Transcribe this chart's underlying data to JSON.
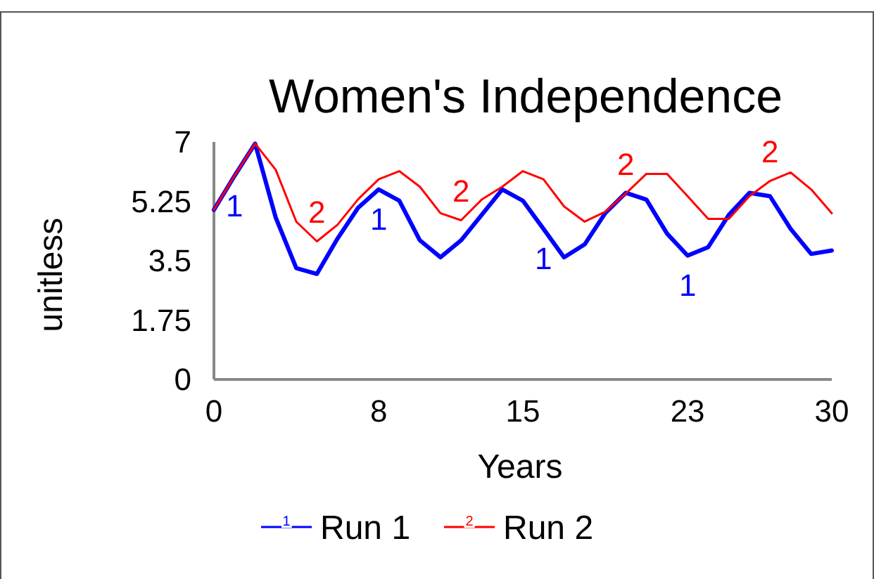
{
  "chart_data": {
    "type": "line",
    "title": "Women's Independence",
    "xlabel": "Years",
    "ylabel": "unitless",
    "x": [
      0,
      1,
      2,
      3,
      4,
      5,
      6,
      7,
      8,
      9,
      10,
      11,
      12,
      13,
      14,
      15,
      16,
      17,
      18,
      19,
      20,
      21,
      22,
      23,
      24,
      25,
      26,
      27,
      28,
      29,
      30
    ],
    "series": [
      {
        "name": "Run 1",
        "color": "#0000ff",
        "values": [
          5.0,
          6.0,
          6.95,
          4.77,
          3.28,
          3.11,
          4.15,
          5.06,
          5.6,
          5.27,
          4.1,
          3.6,
          4.1,
          4.85,
          5.6,
          5.27,
          4.44,
          3.6,
          3.98,
          4.9,
          5.5,
          5.3,
          4.3,
          3.65,
          3.9,
          4.85,
          5.5,
          5.4,
          4.44,
          3.7,
          3.8
        ]
      },
      {
        "name": "Run 2",
        "color": "#ff0000",
        "values": [
          5.0,
          6.0,
          6.95,
          6.18,
          4.65,
          4.07,
          4.56,
          5.31,
          5.9,
          6.14,
          5.68,
          4.9,
          4.69,
          5.3,
          5.68,
          6.14,
          5.9,
          5.1,
          4.65,
          4.94,
          5.48,
          6.06,
          6.06,
          5.4,
          4.73,
          4.73,
          5.4,
          5.85,
          6.1,
          5.6,
          4.9
        ]
      }
    ],
    "annotations": [
      {
        "text": "1",
        "x": 1,
        "y": 6.0
      },
      {
        "text": "2",
        "x": 5,
        "y": 4.07
      },
      {
        "text": "1",
        "x": 8,
        "y": 5.6
      },
      {
        "text": "2",
        "x": 12,
        "y": 4.69
      },
      {
        "text": "1",
        "x": 16,
        "y": 4.44
      },
      {
        "text": "2",
        "x": 20,
        "y": 5.48
      },
      {
        "text": "1",
        "x": 23,
        "y": 3.65
      },
      {
        "text": "2",
        "x": 27,
        "y": 5.85
      }
    ],
    "xlim": [
      0,
      30
    ],
    "xticks": [
      0,
      8,
      15,
      23,
      30
    ],
    "ylim": [
      0,
      7
    ],
    "yticks": [
      0,
      1.75,
      3.5,
      5.25,
      7
    ],
    "grid": false,
    "legend": "bottom",
    "marker": "none",
    "line_style": "solid"
  }
}
